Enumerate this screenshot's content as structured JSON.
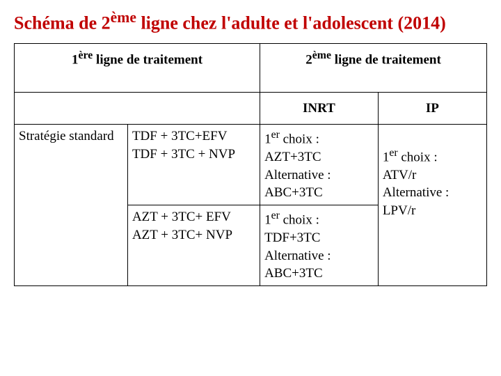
{
  "title": {
    "pre": "Schéma de 2",
    "sup1": "ème",
    "mid": " ligne chez l'adulte et l'adolescent (2014)",
    "color": "#c00000"
  },
  "headers": {
    "firstLine": {
      "pre": "1",
      "sup": "ère",
      "post": " ligne de traitement"
    },
    "secondLine": {
      "pre": "2",
      "sup": "ème",
      "post": " ligne de traitement"
    },
    "inrt": "INRT",
    "ip": "IP"
  },
  "rowLabel": "Stratégie standard",
  "cellB1": {
    "l1": "TDF + 3TC+EFV",
    "l2": "TDF + 3TC + NVP"
  },
  "cellC1": {
    "choixPre": "1",
    "choixSup": "er",
    "choixPost": " choix :",
    "l2": "AZT+3TC",
    "l3": "Alternative :",
    "l4": "ABC+3TC"
  },
  "cellD": {
    "choixPre": "1",
    "choixSup": "er",
    "choixPost": " choix :",
    "l2": "ATV/r",
    "l3": "Alternative :",
    "l4": "LPV/r"
  },
  "cellB2": {
    "l1": "AZT  + 3TC+  EFV",
    "l2": "AZT  + 3TC+ NVP"
  },
  "cellC2": {
    "choixPre": "1",
    "choixSup": "er",
    "choixPost": " choix :",
    "l2": "TDF+3TC",
    "l3": "Alternative :",
    "l4": "ABC+3TC"
  }
}
